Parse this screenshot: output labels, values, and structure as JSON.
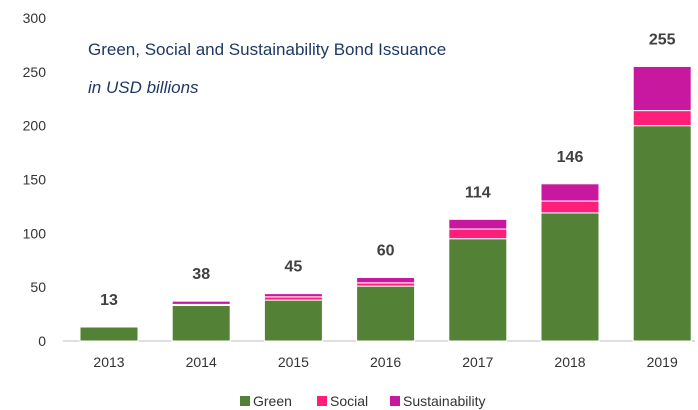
{
  "chart_data": {
    "type": "bar",
    "stacked": true,
    "title": "Green, Social and Sustainability Bond Issuance",
    "subtitle": "in USD billions",
    "categories": [
      "2013",
      "2014",
      "2015",
      "2016",
      "2017",
      "2018",
      "2019"
    ],
    "series": [
      {
        "name": "Green",
        "color": "#538135",
        "values": [
          13,
          33,
          38,
          51,
          95,
          119,
          200
        ]
      },
      {
        "name": "Social",
        "color": "#ff1f7b",
        "values": [
          0,
          1,
          3,
          3,
          9,
          11,
          14
        ]
      },
      {
        "name": "Sustainability",
        "color": "#c7189f",
        "values": [
          0,
          3,
          3,
          5,
          9,
          16,
          41
        ]
      }
    ],
    "totals": [
      "13",
      "38",
      "45",
      "60",
      "114",
      "146",
      "255"
    ],
    "yticks": [
      "0",
      "50",
      "100",
      "150",
      "200",
      "250",
      "300"
    ],
    "ylim": [
      0,
      300
    ],
    "legend_position": "bottom"
  }
}
